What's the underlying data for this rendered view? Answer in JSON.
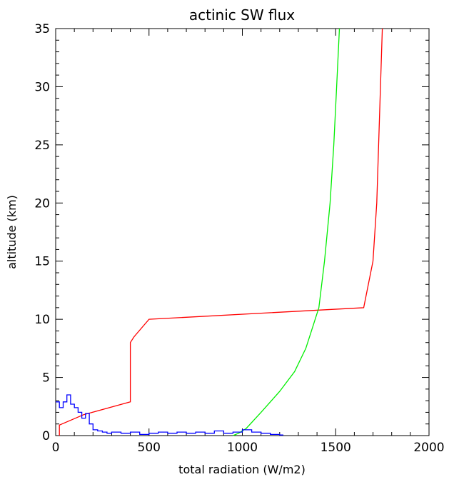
{
  "chart_data": {
    "type": "line",
    "title": "actinic SW flux",
    "xlabel": "total radiation (W/m2)",
    "ylabel": "altitude (km)",
    "xlim": [
      0,
      2000
    ],
    "ylim": [
      0,
      35
    ],
    "xticks": [
      0,
      500,
      1000,
      1500,
      2000
    ],
    "yticks": [
      0,
      5,
      10,
      15,
      20,
      25,
      30,
      35
    ],
    "x_tick_labels": [
      "0",
      "500",
      "1000",
      "1500",
      "2000"
    ],
    "y_tick_labels": [
      "0",
      "5",
      "10",
      "15",
      "20",
      "25",
      "30",
      "35"
    ],
    "grid": false,
    "legend": "none",
    "series": [
      {
        "color": "#ff0000",
        "style": "line",
        "points": [
          [
            20,
            0
          ],
          [
            20,
            0.9
          ],
          [
            150,
            1.8
          ],
          [
            400,
            2.9
          ],
          [
            400,
            8.0
          ],
          [
            420,
            8.5
          ],
          [
            500,
            10.0
          ],
          [
            1650,
            11.0
          ],
          [
            1700,
            15.0
          ],
          [
            1720,
            20.0
          ],
          [
            1740,
            30.0
          ],
          [
            1750,
            35.0
          ]
        ]
      },
      {
        "color": "#00ee00",
        "style": "line",
        "points": [
          [
            950,
            0
          ],
          [
            980,
            0.2
          ],
          [
            1020,
            0.6
          ],
          [
            1100,
            2.0
          ],
          [
            1200,
            3.8
          ],
          [
            1280,
            5.5
          ],
          [
            1340,
            7.5
          ],
          [
            1380,
            9.5
          ],
          [
            1410,
            11.0
          ],
          [
            1440,
            15.0
          ],
          [
            1470,
            20.0
          ],
          [
            1490,
            25.0
          ],
          [
            1505,
            30.0
          ],
          [
            1520,
            35.0
          ]
        ]
      },
      {
        "color": "#0000ff",
        "style": "step",
        "x": [
          0,
          20,
          40,
          60,
          80,
          100,
          120,
          140,
          160,
          180,
          200,
          225,
          250,
          275,
          300,
          350,
          400,
          450,
          500,
          550,
          600,
          650,
          700,
          750,
          800,
          850,
          900,
          950,
          1000,
          1050,
          1100,
          1150,
          1200
        ],
        "values": [
          2.9,
          2.4,
          2.9,
          3.5,
          2.7,
          2.4,
          2.0,
          1.5,
          1.9,
          1.0,
          0.5,
          0.4,
          0.3,
          0.2,
          0.3,
          0.2,
          0.3,
          0.1,
          0.2,
          0.3,
          0.2,
          0.3,
          0.2,
          0.3,
          0.2,
          0.4,
          0.2,
          0.3,
          0.5,
          0.3,
          0.2,
          0.1,
          0.05
        ]
      }
    ]
  }
}
